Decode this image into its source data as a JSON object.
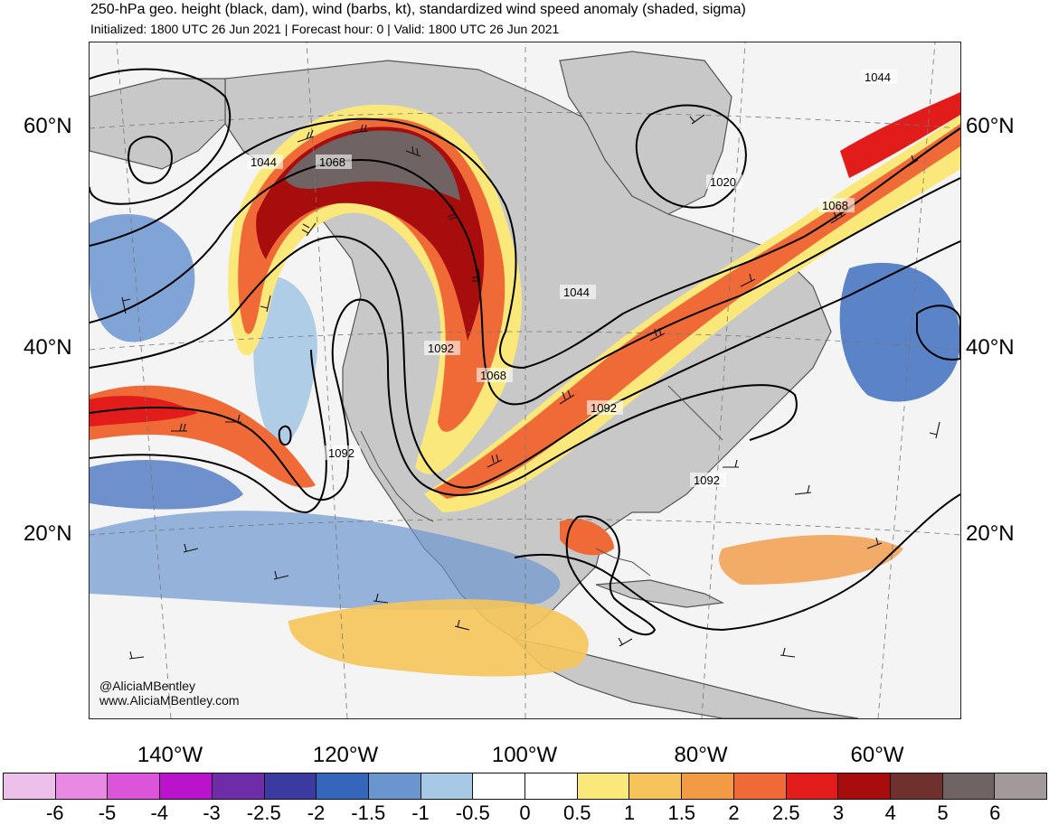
{
  "header": {
    "title": "250-hPa geo. height (black, dam), wind (barbs, kt), standardized wind speed anomaly (shaded, sigma)",
    "subtitle": "Initialized: 1800 UTC 26 Jun 2021 | Forecast hour: 0 | Valid: 1800 UTC 26 Jun 2021"
  },
  "map": {
    "lat_labels": [
      "60°N",
      "40°N",
      "20°N"
    ],
    "lon_labels": [
      "140°W",
      "120°W",
      "100°W",
      "80°W",
      "60°W"
    ],
    "contour_labels": [
      "1044",
      "1068",
      "1044",
      "1020",
      "1068",
      "1044",
      "1092",
      "1068",
      "1092",
      "1092",
      "1092"
    ],
    "colors": {
      "land": "#c8c8c8",
      "ocean": "#f4f4f4",
      "contour": "#000000",
      "coastline": "#555555"
    }
  },
  "credits": {
    "handle": "@AliciaMBentley",
    "website": "www.AliciaMBentley.com"
  },
  "colorbar": {
    "colors": [
      "#ecc0ea",
      "#e88ae4",
      "#dc54da",
      "#b914cc",
      "#6e2ca8",
      "#3a3aa0",
      "#3466bc",
      "#6b95cf",
      "#a8c9e6",
      "#ffffff",
      "#ffffff",
      "#fbe87a",
      "#f6c45a",
      "#f29a44",
      "#ef6a36",
      "#e21b1b",
      "#a80d0d",
      "#70302e",
      "#6f6463",
      "#a29a9a"
    ],
    "labels": [
      "-6",
      "-5",
      "-4",
      "-3",
      "-2.5",
      "-2",
      "-1.5",
      "-1",
      "-0.5",
      "0",
      "0.5",
      "1",
      "1.5",
      "2",
      "2.5",
      "3",
      "4",
      "5",
      "6"
    ]
  }
}
